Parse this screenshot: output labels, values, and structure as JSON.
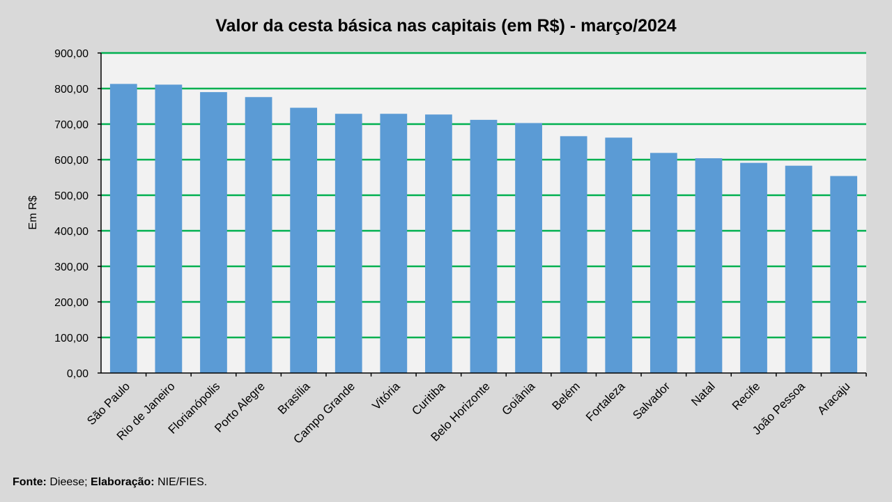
{
  "chart_data": {
    "type": "bar",
    "title": "Valor da cesta básica nas capitais (em R$) - março/2024",
    "ylabel": "Em R$",
    "xlabel": "",
    "ylim": [
      0,
      900
    ],
    "yticks": [
      0,
      100,
      200,
      300,
      400,
      500,
      600,
      700,
      800,
      900
    ],
    "ytick_labels": [
      "0,00",
      "100,00",
      "200,00",
      "300,00",
      "400,00",
      "500,00",
      "600,00",
      "700,00",
      "800,00",
      "900,00"
    ],
    "categories": [
      "São Paulo",
      "Rio de Janeiro",
      "Florianópolis",
      "Porto Alegre",
      "Brasília",
      "Campo Grande",
      "Vitória",
      "Curitiba",
      "Belo Horizonte",
      "Goiânia",
      "Belém",
      "Fortaleza",
      "Salvador",
      "Natal",
      "Recife",
      "João Pessoa",
      "Aracaju"
    ],
    "values": [
      813,
      811,
      790,
      776,
      746,
      729,
      729,
      727,
      712,
      703,
      666,
      662,
      619,
      604,
      591,
      583,
      554
    ],
    "grid": true,
    "colors": {
      "bar": "#5b9bd5",
      "grid": "#00b050",
      "plot_background": "#f2f2f2",
      "background": "#d9d9d9"
    }
  },
  "source": {
    "fonte_label": "Fonte:",
    "fonte_value": "Dieese;",
    "elaboracao_label": "Elaboração:",
    "elaboracao_value": "NIE/FIES."
  }
}
